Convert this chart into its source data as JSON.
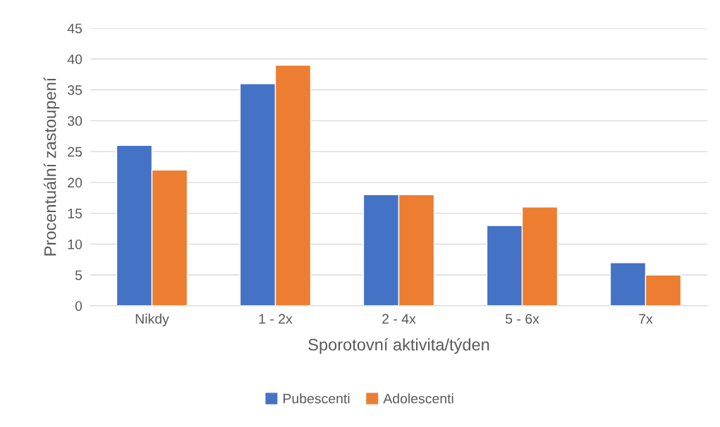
{
  "chart_data": {
    "type": "bar",
    "xlabel": "Sporotovní aktivita/týden",
    "ylabel": "Procentuální zastoupení",
    "categories": [
      "Nikdy",
      "1 - 2x",
      "2 - 4x",
      "5 - 6x",
      "7x"
    ],
    "series": [
      {
        "name": "Pubescenti",
        "color": "#4472c4",
        "values": [
          26,
          36,
          18,
          13,
          7
        ]
      },
      {
        "name": "Adolescenti",
        "color": "#ed7d31",
        "values": [
          22,
          39,
          18,
          16,
          5
        ]
      }
    ],
    "ylim": [
      0,
      45
    ],
    "yticks": [
      0,
      5,
      10,
      15,
      20,
      25,
      30,
      35,
      40,
      45
    ],
    "grid": "y",
    "legend": "bottom"
  }
}
